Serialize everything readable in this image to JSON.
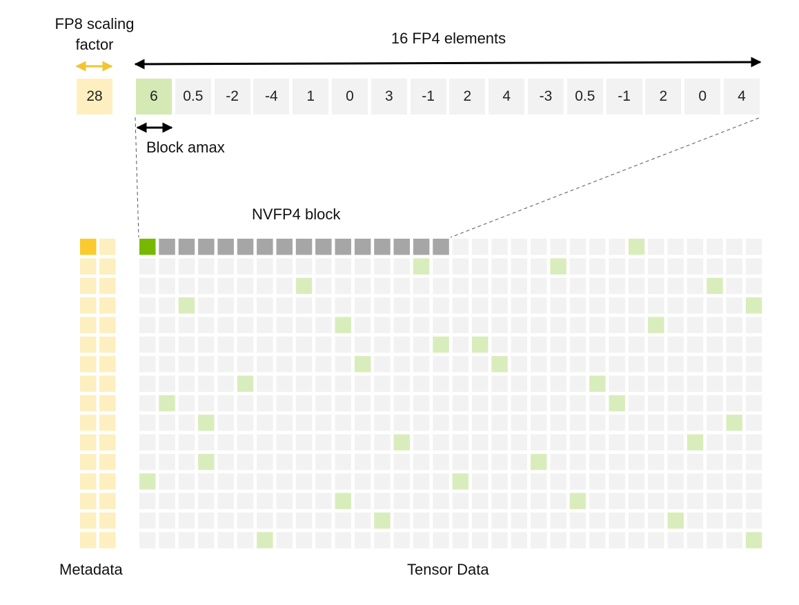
{
  "labels": {
    "scaling_factor": "FP8 scaling factor",
    "elements": "16 FP4 elements",
    "block_amax": "Block amax",
    "nvfp4_block": "NVFP4 block",
    "metadata": "Metadata",
    "tensor_data": "Tensor Data"
  },
  "scale_value": "28",
  "fp4_values": [
    "6",
    "0.5",
    "-2",
    "-4",
    "1",
    "0",
    "3",
    "-1",
    "2",
    "4",
    "-3",
    "0.5",
    "-1",
    "2",
    "0",
    "4"
  ],
  "colors": {
    "scale_cell": "#fdefbf",
    "scale_arrow": "#f2c530",
    "amax_cell": "#d4e9b4",
    "value_cell": "#f2f2f2",
    "grid_cell": "#f2f2f2",
    "grid_highlight": "#d9edbc",
    "block_cell": "#a6a6a6",
    "block_amax_cell": "#76b900",
    "metadata_cell": "#fdefbf",
    "metadata_highlight": "#fbca2e",
    "arrow": "#000000",
    "dashed_line": "#555555"
  },
  "grid": {
    "rows": 16,
    "cols": 32,
    "block_row": 0,
    "block_length": 16,
    "highlighted_cells": [
      [
        0,
        25
      ],
      [
        1,
        14
      ],
      [
        1,
        21
      ],
      [
        2,
        8
      ],
      [
        2,
        29
      ],
      [
        3,
        2
      ],
      [
        3,
        31
      ],
      [
        4,
        10
      ],
      [
        4,
        26
      ],
      [
        5,
        15
      ],
      [
        5,
        17
      ],
      [
        6,
        11
      ],
      [
        6,
        18
      ],
      [
        7,
        5
      ],
      [
        7,
        23
      ],
      [
        8,
        1
      ],
      [
        8,
        24
      ],
      [
        9,
        3
      ],
      [
        9,
        30
      ],
      [
        10,
        13
      ],
      [
        10,
        28
      ],
      [
        11,
        3
      ],
      [
        11,
        20
      ],
      [
        12,
        0
      ],
      [
        12,
        16
      ],
      [
        13,
        10
      ],
      [
        13,
        22
      ],
      [
        14,
        12
      ],
      [
        14,
        27
      ],
      [
        15,
        6
      ],
      [
        15,
        31
      ]
    ]
  },
  "metadata_grid": {
    "rows": 16,
    "cols": 2,
    "highlighted_cells": [
      [
        0,
        0
      ]
    ]
  }
}
